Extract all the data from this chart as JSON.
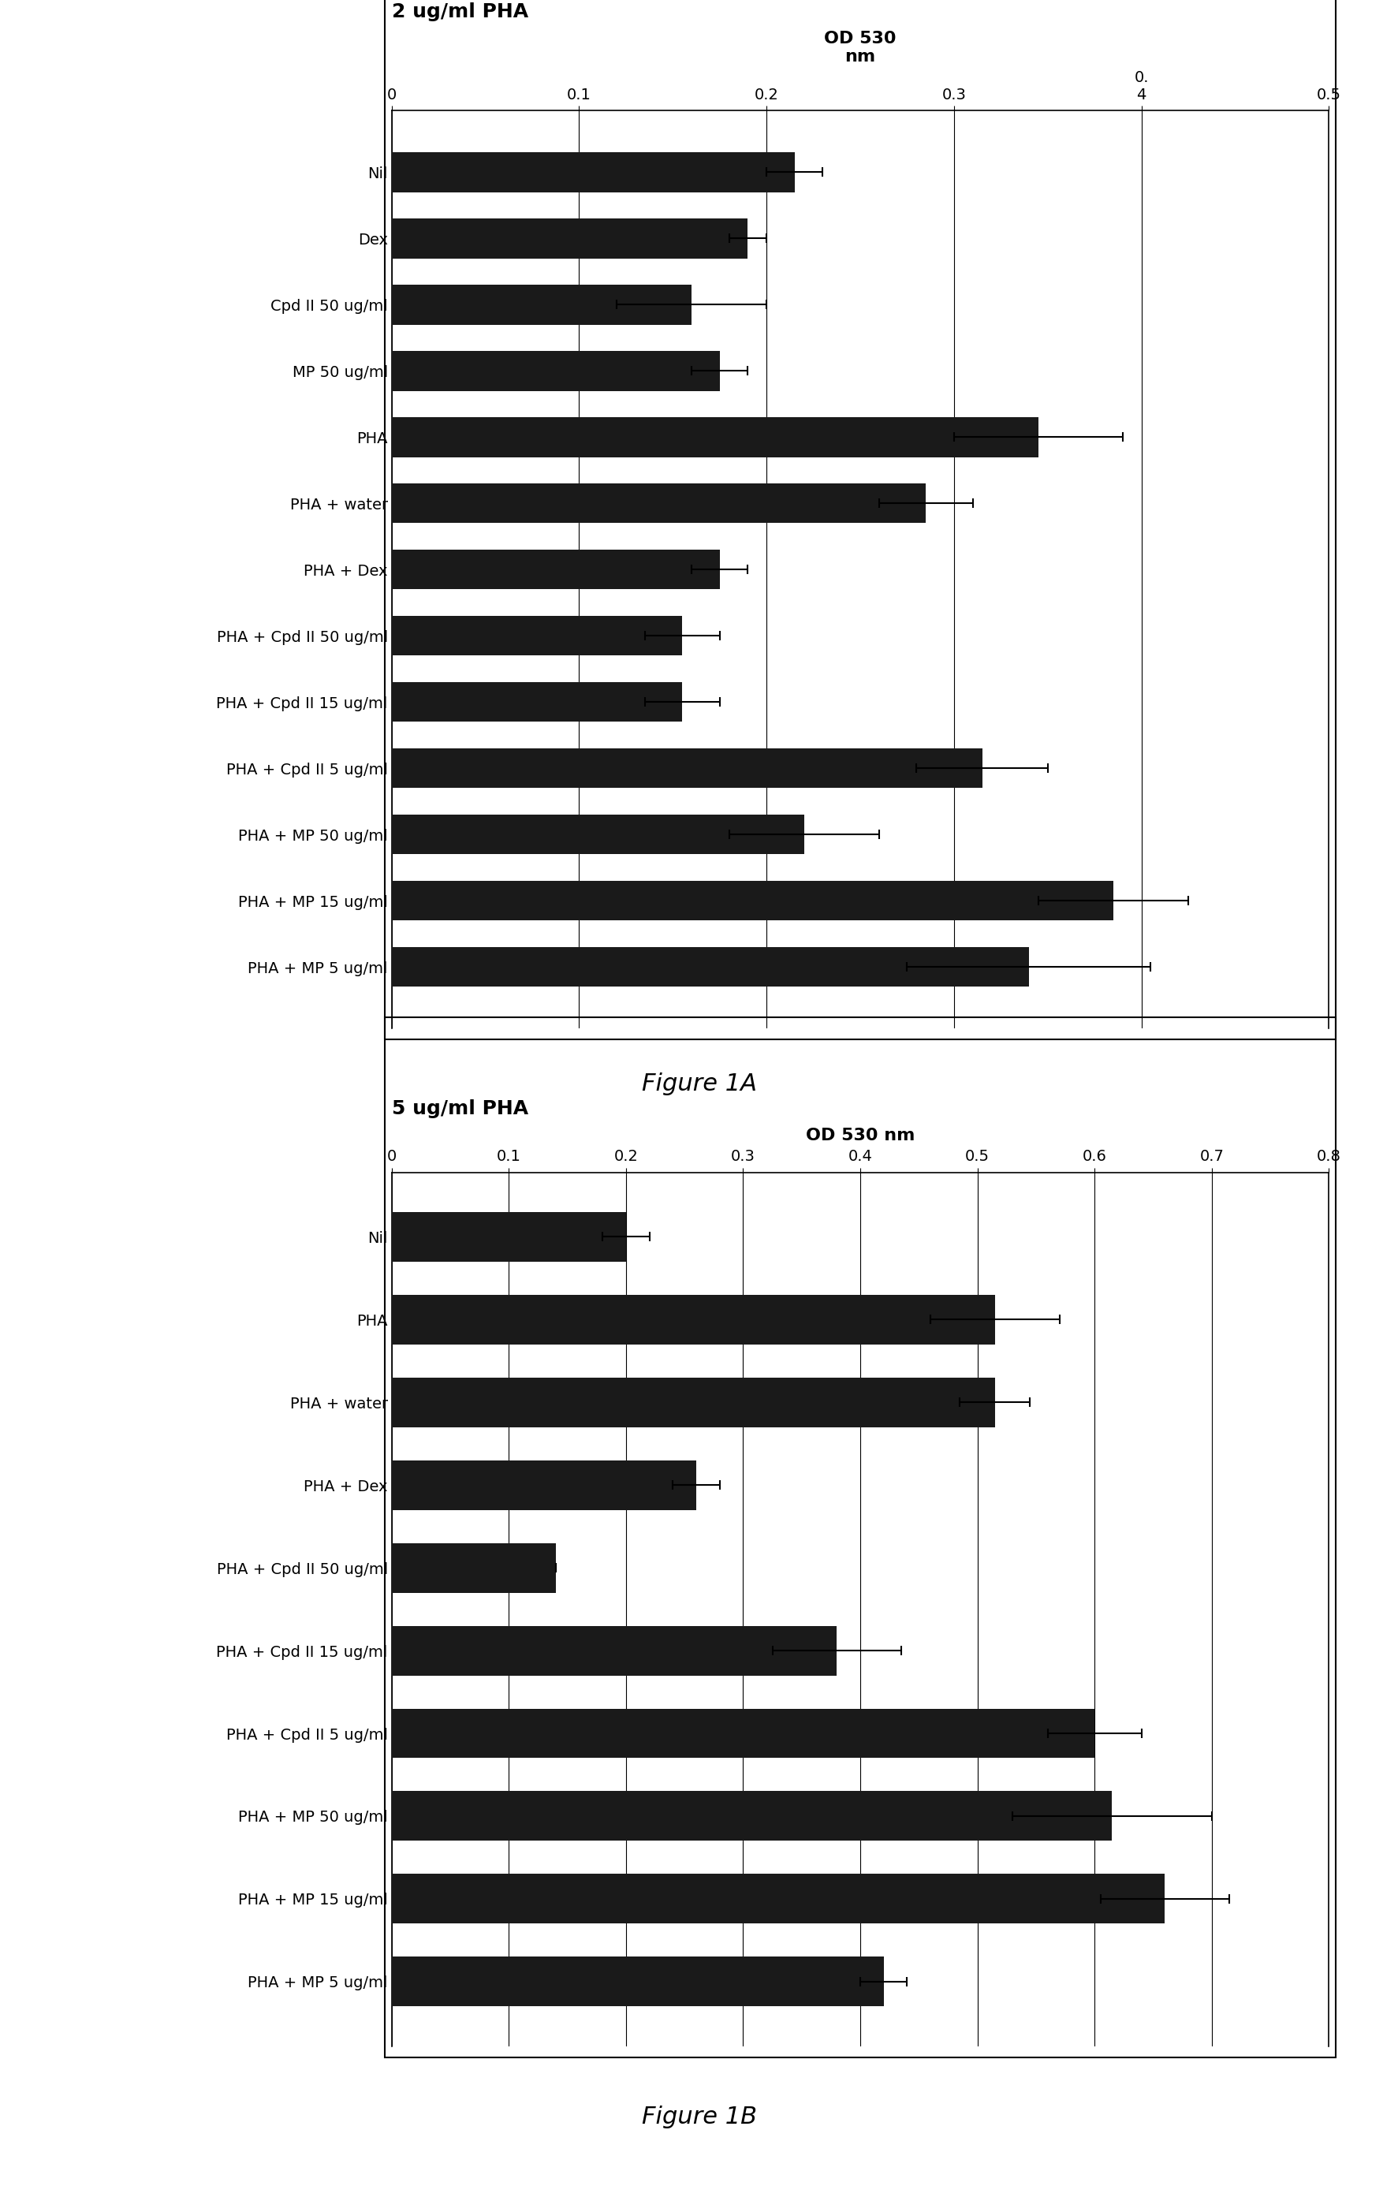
{
  "fig1A": {
    "title": "2 ug/ml PHA",
    "xlabel": "OD 530\nnm",
    "xlim": [
      0,
      0.5
    ],
    "xticks": [
      0,
      0.1,
      0.2,
      0.3,
      0.4,
      0.5
    ],
    "xticklabels": [
      "0",
      "0.1",
      "0.2",
      "0.3",
      "0.\n4",
      "0.5"
    ],
    "categories": [
      "Nil",
      "Dex",
      "Cpd II 50 ug/ml",
      "MP 50 ug/ml",
      "PHA",
      "PHA + water",
      "PHA + Dex",
      "PHA + Cpd II 50 ug/ml",
      "PHA + Cpd II 15 ug/ml",
      "PHA + Cpd II 5 ug/ml",
      "PHA + MP 50 ug/ml",
      "PHA + MP 15 ug/ml",
      "PHA + MP 5 ug/ml"
    ],
    "values": [
      0.215,
      0.19,
      0.16,
      0.175,
      0.345,
      0.285,
      0.175,
      0.155,
      0.155,
      0.315,
      0.22,
      0.385,
      0.34
    ],
    "errors": [
      0.015,
      0.01,
      0.04,
      0.015,
      0.045,
      0.025,
      0.015,
      0.02,
      0.02,
      0.035,
      0.04,
      0.04,
      0.065
    ],
    "bar_color": "#1a1a1a",
    "figure_label": "Figure 1A"
  },
  "fig1B": {
    "title": "5 ug/ml PHA",
    "xlabel": "OD 530 nm",
    "xlim": [
      0,
      0.8
    ],
    "xticks": [
      0,
      0.1,
      0.2,
      0.3,
      0.4,
      0.5,
      0.6,
      0.7,
      0.8
    ],
    "xticklabels": [
      "0",
      "0.1",
      "0.2",
      "0.3",
      "0.4",
      "0.5",
      "0.6",
      "0.7",
      "0.8"
    ],
    "categories": [
      "Nil",
      "PHA",
      "PHA + water",
      "PHA + Dex",
      "PHA + Cpd II 50 ug/ml",
      "PHA + Cpd II 15 ug/ml",
      "PHA + Cpd II 5 ug/ml",
      "PHA + MP 50 ug/ml",
      "PHA + MP 15 ug/ml",
      "PHA + MP 5 ug/ml"
    ],
    "values": [
      0.2,
      0.515,
      0.515,
      0.26,
      0.14,
      0.38,
      0.6,
      0.615,
      0.66,
      0.42
    ],
    "errors": [
      0.02,
      0.055,
      0.03,
      0.02,
      0.0,
      0.055,
      0.04,
      0.085,
      0.055,
      0.02
    ],
    "bar_color": "#1a1a1a",
    "figure_label": "Figure 1B"
  },
  "bg_color": "#ffffff",
  "bar_height": 0.6,
  "font_family": "DejaVu Serif",
  "title_fontsize": 18,
  "tick_fontsize": 14,
  "label_fontsize": 16,
  "caption_fontsize": 22
}
